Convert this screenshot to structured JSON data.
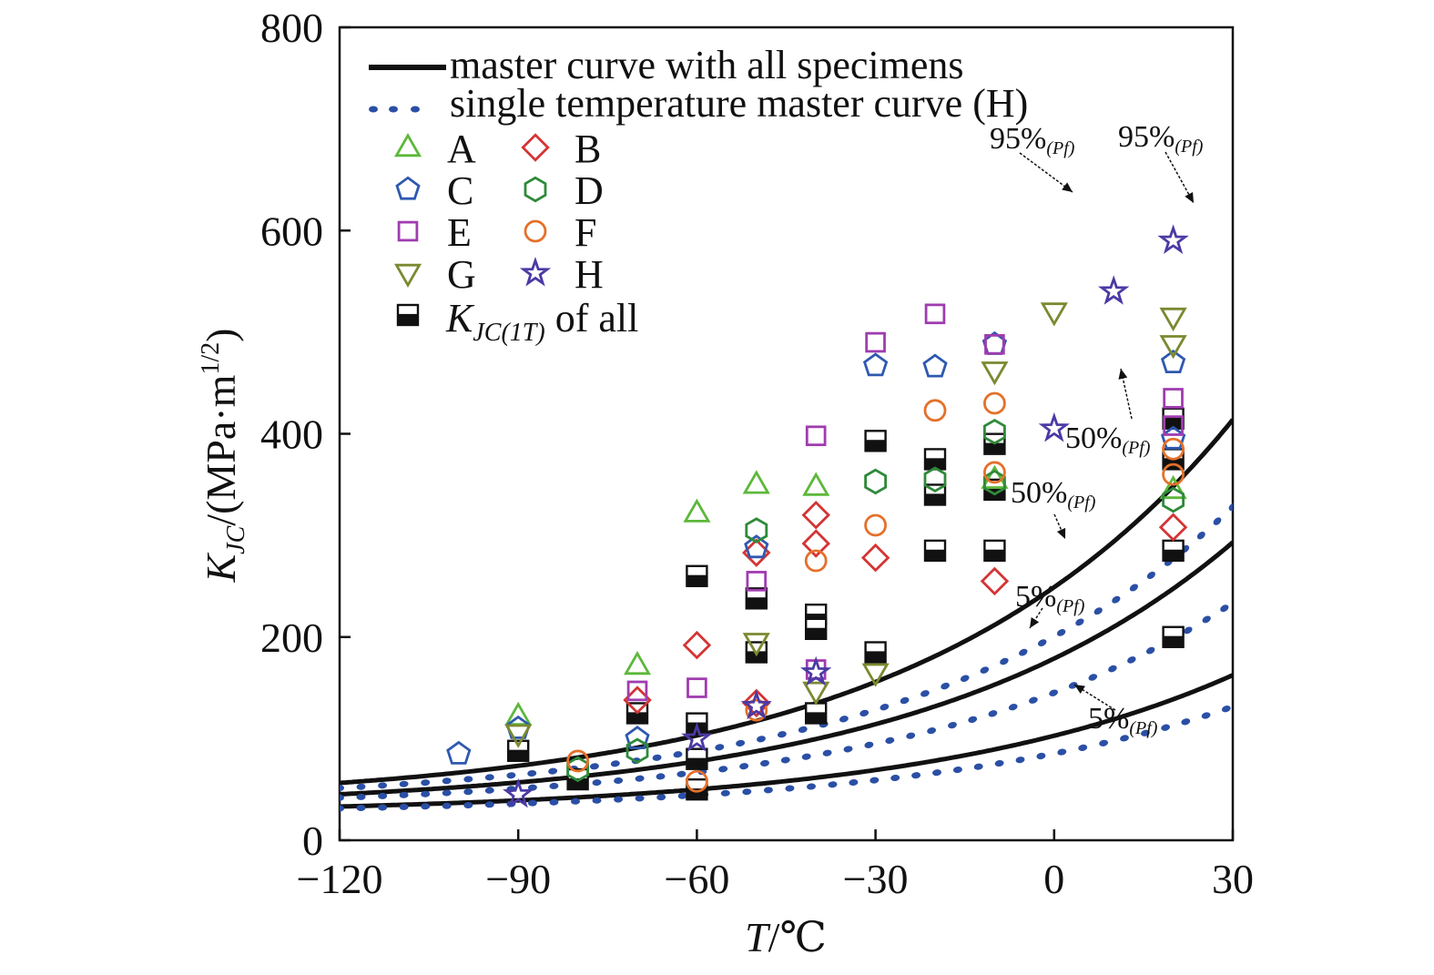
{
  "chart_data": {
    "type": "scatter",
    "xlabel_var": "T",
    "xlabel_unit": "/℃",
    "ylabel_var": "K",
    "ylabel_sub": "JC",
    "ylabel_unit": "/(MPa·m",
    "ylabel_exp": "1/2",
    "ylabel_close": ")",
    "xlim": [
      -120,
      30
    ],
    "ylim": [
      0,
      800
    ],
    "xticks": [
      -120,
      -90,
      -60,
      -30,
      0,
      30
    ],
    "yticks": [
      0,
      200,
      400,
      600,
      800
    ],
    "x_tick_labels": [
      "−120",
      "−90",
      "−60",
      "−30",
      "0",
      "30"
    ],
    "y_tick_labels": [
      "0",
      "200",
      "400",
      "600",
      "800"
    ],
    "legend": {
      "placement": "top-left",
      "lines": [
        {
          "name": "master curve with all specimens",
          "style": "solid",
          "color": "#111111"
        },
        {
          "name": "single temperature master curve (H)",
          "style": "dotted",
          "color": "#2a4fa5"
        }
      ],
      "kjc_label_var": "K",
      "kjc_label_sub": "JC(1T)",
      "kjc_label_rest": " of all"
    },
    "curves": {
      "master_all": {
        "T0": -39.5,
        "levels": [
          {
            "pct": 95,
            "label": "95%",
            "sub": "(Pf)"
          },
          {
            "pct": 50,
            "label": "50%",
            "sub": "(Pf)"
          },
          {
            "pct": 5,
            "label": "5%",
            "sub": "(Pf)"
          }
        ]
      },
      "single_H": {
        "T0": -26,
        "levels": [
          {
            "pct": 95,
            "label": "95%",
            "sub": "(Pf)"
          },
          {
            "pct": 50,
            "label": "50%",
            "sub": "(Pf)"
          },
          {
            "pct": 5,
            "label": "5%",
            "sub": "(Pf)"
          }
        ]
      }
    },
    "series": [
      {
        "name": "A",
        "marker": "triangle",
        "color": "#5cb83a",
        "points": [
          [
            -90,
            122
          ],
          [
            -70,
            172
          ],
          [
            -60,
            322
          ],
          [
            -50,
            350
          ],
          [
            -40,
            348
          ],
          [
            -10,
            355
          ],
          [
            20,
            345
          ]
        ]
      },
      {
        "name": "B",
        "marker": "diamond",
        "color": "#d43434",
        "points": [
          [
            -70,
            138
          ],
          [
            -60,
            192
          ],
          [
            -50,
            283
          ],
          [
            -50,
            135
          ],
          [
            -40,
            320
          ],
          [
            -40,
            292
          ],
          [
            -30,
            278
          ],
          [
            -10,
            255
          ],
          [
            20,
            308
          ]
        ]
      },
      {
        "name": "C",
        "marker": "pentagon",
        "color": "#2e59b0",
        "points": [
          [
            -100,
            85
          ],
          [
            -90,
            110
          ],
          [
            -70,
            100
          ],
          [
            -50,
            288
          ],
          [
            -30,
            467
          ],
          [
            -20,
            466
          ],
          [
            -10,
            488
          ],
          [
            20,
            470
          ],
          [
            20,
            395
          ]
        ]
      },
      {
        "name": "D",
        "marker": "hexagon",
        "color": "#2f8a3a",
        "points": [
          [
            -80,
            70
          ],
          [
            -70,
            88
          ],
          [
            -50,
            305
          ],
          [
            -30,
            353
          ],
          [
            -20,
            355
          ],
          [
            -10,
            402
          ],
          [
            -10,
            352
          ],
          [
            20,
            335
          ]
        ]
      },
      {
        "name": "E",
        "marker": "square",
        "color": "#a03cb0",
        "points": [
          [
            -70,
            147
          ],
          [
            -60,
            150
          ],
          [
            -50,
            255
          ],
          [
            -40,
            398
          ],
          [
            -40,
            168
          ],
          [
            -30,
            490
          ],
          [
            -20,
            518
          ],
          [
            -10,
            488
          ],
          [
            20,
            435
          ],
          [
            20,
            408
          ]
        ]
      },
      {
        "name": "F",
        "marker": "circle",
        "color": "#e5702a",
        "points": [
          [
            -80,
            78
          ],
          [
            -60,
            58
          ],
          [
            -50,
            128
          ],
          [
            -40,
            275
          ],
          [
            -30,
            310
          ],
          [
            -20,
            423
          ],
          [
            -10,
            430
          ],
          [
            -10,
            362
          ],
          [
            20,
            385
          ],
          [
            20,
            360
          ]
        ]
      },
      {
        "name": "G",
        "marker": "triangle-down",
        "color": "#7a8a30",
        "points": [
          [
            -90,
            105
          ],
          [
            -50,
            195
          ],
          [
            -40,
            147
          ],
          [
            -30,
            165
          ],
          [
            -10,
            462
          ],
          [
            0,
            520
          ],
          [
            20,
            515
          ],
          [
            20,
            488
          ]
        ]
      },
      {
        "name": "H",
        "marker": "star",
        "color": "#4a3aa5",
        "points": [
          [
            -90,
            45
          ],
          [
            -60,
            100
          ],
          [
            -50,
            132
          ],
          [
            -40,
            165
          ],
          [
            0,
            405
          ],
          [
            10,
            540
          ],
          [
            20,
            590
          ]
        ]
      },
      {
        "name": "KJC(1T) of all",
        "marker": "half-square",
        "color": "#111111",
        "points": [
          [
            -90,
            88
          ],
          [
            -80,
            60
          ],
          [
            -70,
            125
          ],
          [
            -60,
            260
          ],
          [
            -60,
            115
          ],
          [
            -60,
            80
          ],
          [
            -60,
            50
          ],
          [
            -50,
            238
          ],
          [
            -50,
            185
          ],
          [
            -40,
            222
          ],
          [
            -40,
            208
          ],
          [
            -40,
            125
          ],
          [
            -30,
            393
          ],
          [
            -30,
            185
          ],
          [
            -20,
            375
          ],
          [
            -20,
            340
          ],
          [
            -20,
            285
          ],
          [
            -10,
            390
          ],
          [
            -10,
            345
          ],
          [
            -10,
            285
          ],
          [
            20,
            415
          ],
          [
            20,
            375
          ],
          [
            20,
            285
          ],
          [
            20,
            200
          ]
        ]
      }
    ]
  }
}
